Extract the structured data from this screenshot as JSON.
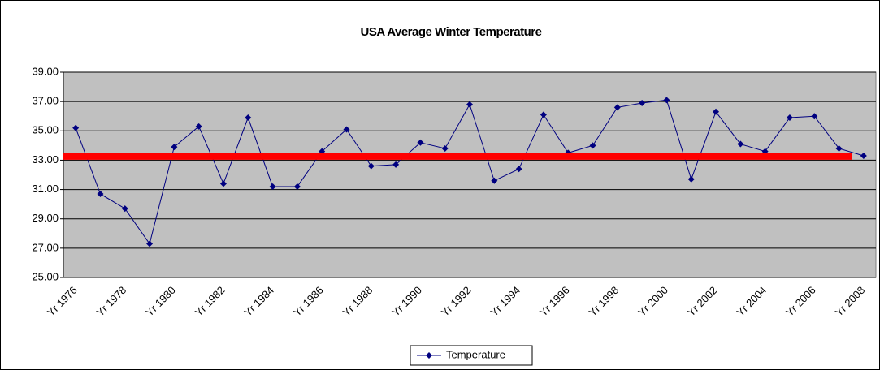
{
  "chart_data": {
    "type": "line",
    "title": "USA Average Winter Temperature",
    "categories": [
      "Yr 1976",
      null,
      "Yr 1978",
      null,
      "Yr 1980",
      null,
      "Yr 1982",
      null,
      "Yr 1984",
      null,
      "Yr 1986",
      null,
      "Yr 1988",
      null,
      "Yr 1990",
      null,
      "Yr 1992",
      null,
      "Yr 1994",
      null,
      "Yr 1996",
      null,
      "Yr 1998",
      null,
      "Yr 2000",
      null,
      "Yr 2002",
      null,
      "Yr 2004",
      null,
      "Yr 2006",
      null,
      "Yr 2008"
    ],
    "series": [
      {
        "name": "Temperature",
        "color": "#000080",
        "values": [
          35.2,
          30.7,
          29.7,
          27.3,
          33.9,
          35.3,
          31.4,
          35.9,
          31.2,
          31.2,
          33.6,
          35.1,
          32.6,
          32.7,
          34.2,
          33.8,
          36.8,
          31.6,
          32.4,
          36.1,
          33.5,
          34.0,
          36.6,
          36.9,
          37.1,
          31.7,
          36.3,
          34.1,
          33.6,
          35.9,
          36.0,
          33.8,
          33.3
        ]
      }
    ],
    "reference_line": {
      "value": 33.25,
      "color": "#ff0000"
    },
    "ylim": [
      25,
      39
    ],
    "yticks": [
      {
        "value": 25,
        "label": "25.00"
      },
      {
        "value": 27,
        "label": "27.00"
      },
      {
        "value": 29,
        "label": "29.00"
      },
      {
        "value": 31,
        "label": "31.00"
      },
      {
        "value": 33,
        "label": "33.00"
      },
      {
        "value": 35,
        "label": "35.00"
      },
      {
        "value": 37,
        "label": "37.00"
      },
      {
        "value": 39,
        "label": "39.00"
      }
    ],
    "grid": true,
    "legend": "bottom"
  }
}
